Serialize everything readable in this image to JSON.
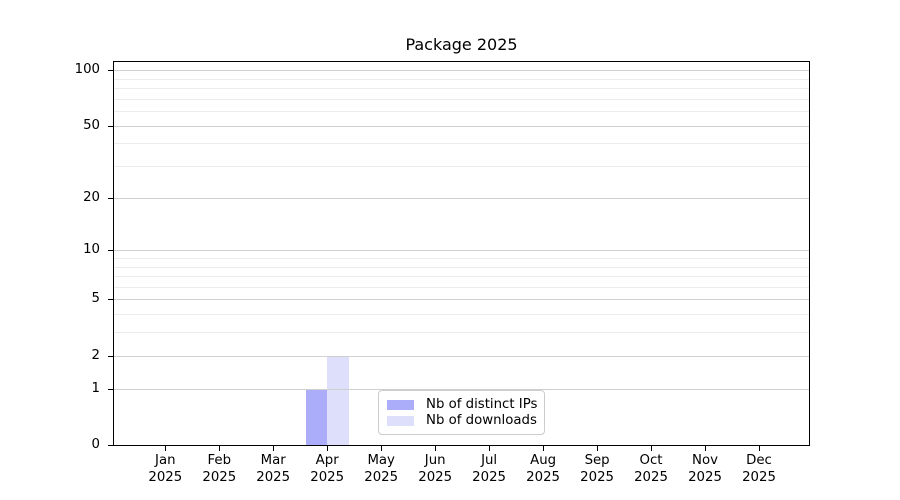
{
  "chart_data": {
    "type": "bar",
    "title": "Package 2025",
    "months": [
      "Jan",
      "Feb",
      "Mar",
      "Apr",
      "May",
      "Jun",
      "Jul",
      "Aug",
      "Sep",
      "Oct",
      "Nov",
      "Dec"
    ],
    "year": "2025",
    "series": [
      {
        "name": "Nb of distinct IPs",
        "color": "#abadfa",
        "values": [
          0,
          0,
          0,
          1,
          0,
          0,
          0,
          0,
          0,
          0,
          0,
          0
        ]
      },
      {
        "name": "Nb of downloads",
        "color": "#dedffb",
        "values": [
          0,
          0,
          0,
          2,
          0,
          0,
          0,
          0,
          0,
          0,
          0,
          0
        ]
      }
    ],
    "scale": "log1p",
    "ylim": [
      0,
      110.5
    ],
    "y_tick_values": [
      0,
      1,
      2,
      5,
      10,
      20,
      50,
      100
    ],
    "y_tick_labels": [
      "0",
      "1",
      "2",
      "5",
      "10",
      "20",
      "50",
      "100"
    ],
    "y_minor_gridlines": [
      3,
      4,
      6,
      7,
      8,
      9,
      30,
      40,
      60,
      70,
      80,
      90
    ],
    "grid": "on",
    "legend_position": "lower center",
    "colors": {
      "grid_major": "#d0d0d0",
      "grid_minor": "#ececec",
      "spine": "#000000",
      "text": "#000000",
      "legend_border": "#cccccc"
    }
  }
}
